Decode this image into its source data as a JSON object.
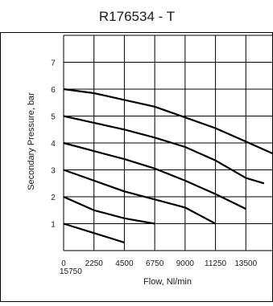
{
  "chart_data": {
    "type": "line",
    "title": "R176534 - T",
    "xlabel": "Flow, Nl/min",
    "ylabel": "Secondary Pressure, bar",
    "x_tick_labels": [
      "0",
      "2250",
      "4500",
      "6750",
      "9000",
      "11250",
      "13500"
    ],
    "x_tick_label_wrapped": "15750",
    "y_tick_labels": [
      "1",
      "2",
      "3",
      "4",
      "5",
      "6",
      "7"
    ],
    "xlim": [
      0,
      15750
    ],
    "ylim": [
      0,
      8
    ],
    "x_gridlines": [
      0,
      2250,
      4500,
      6750,
      9000,
      11250,
      13500,
      15750
    ],
    "y_gridlines": [
      0,
      1,
      2,
      3,
      4,
      5,
      6,
      7,
      8
    ],
    "grid": true,
    "legend": "none",
    "line_color": "#000000",
    "series": [
      {
        "x": [
          0,
          4500
        ],
        "y": [
          1.0,
          0.3
        ]
      },
      {
        "x": [
          0,
          2250,
          4500,
          6750
        ],
        "y": [
          2.0,
          1.5,
          1.2,
          1.0
        ]
      },
      {
        "x": [
          0,
          2250,
          4500,
          6750,
          9000,
          11250
        ],
        "y": [
          3.0,
          2.6,
          2.2,
          1.9,
          1.6,
          1.0
        ]
      },
      {
        "x": [
          0,
          2250,
          4500,
          6750,
          9000,
          11250,
          13500
        ],
        "y": [
          4.0,
          3.7,
          3.4,
          3.05,
          2.6,
          2.1,
          1.55
        ]
      },
      {
        "x": [
          0,
          2250,
          4500,
          6750,
          9000,
          11250,
          13500,
          14850
        ],
        "y": [
          5.0,
          4.75,
          4.5,
          4.2,
          3.85,
          3.35,
          2.7,
          2.5
        ]
      },
      {
        "x": [
          0,
          2250,
          4500,
          6750,
          9000,
          11250,
          13500,
          15750
        ],
        "y": [
          6.0,
          5.85,
          5.6,
          5.35,
          4.95,
          4.55,
          4.05,
          3.55
        ]
      }
    ]
  }
}
